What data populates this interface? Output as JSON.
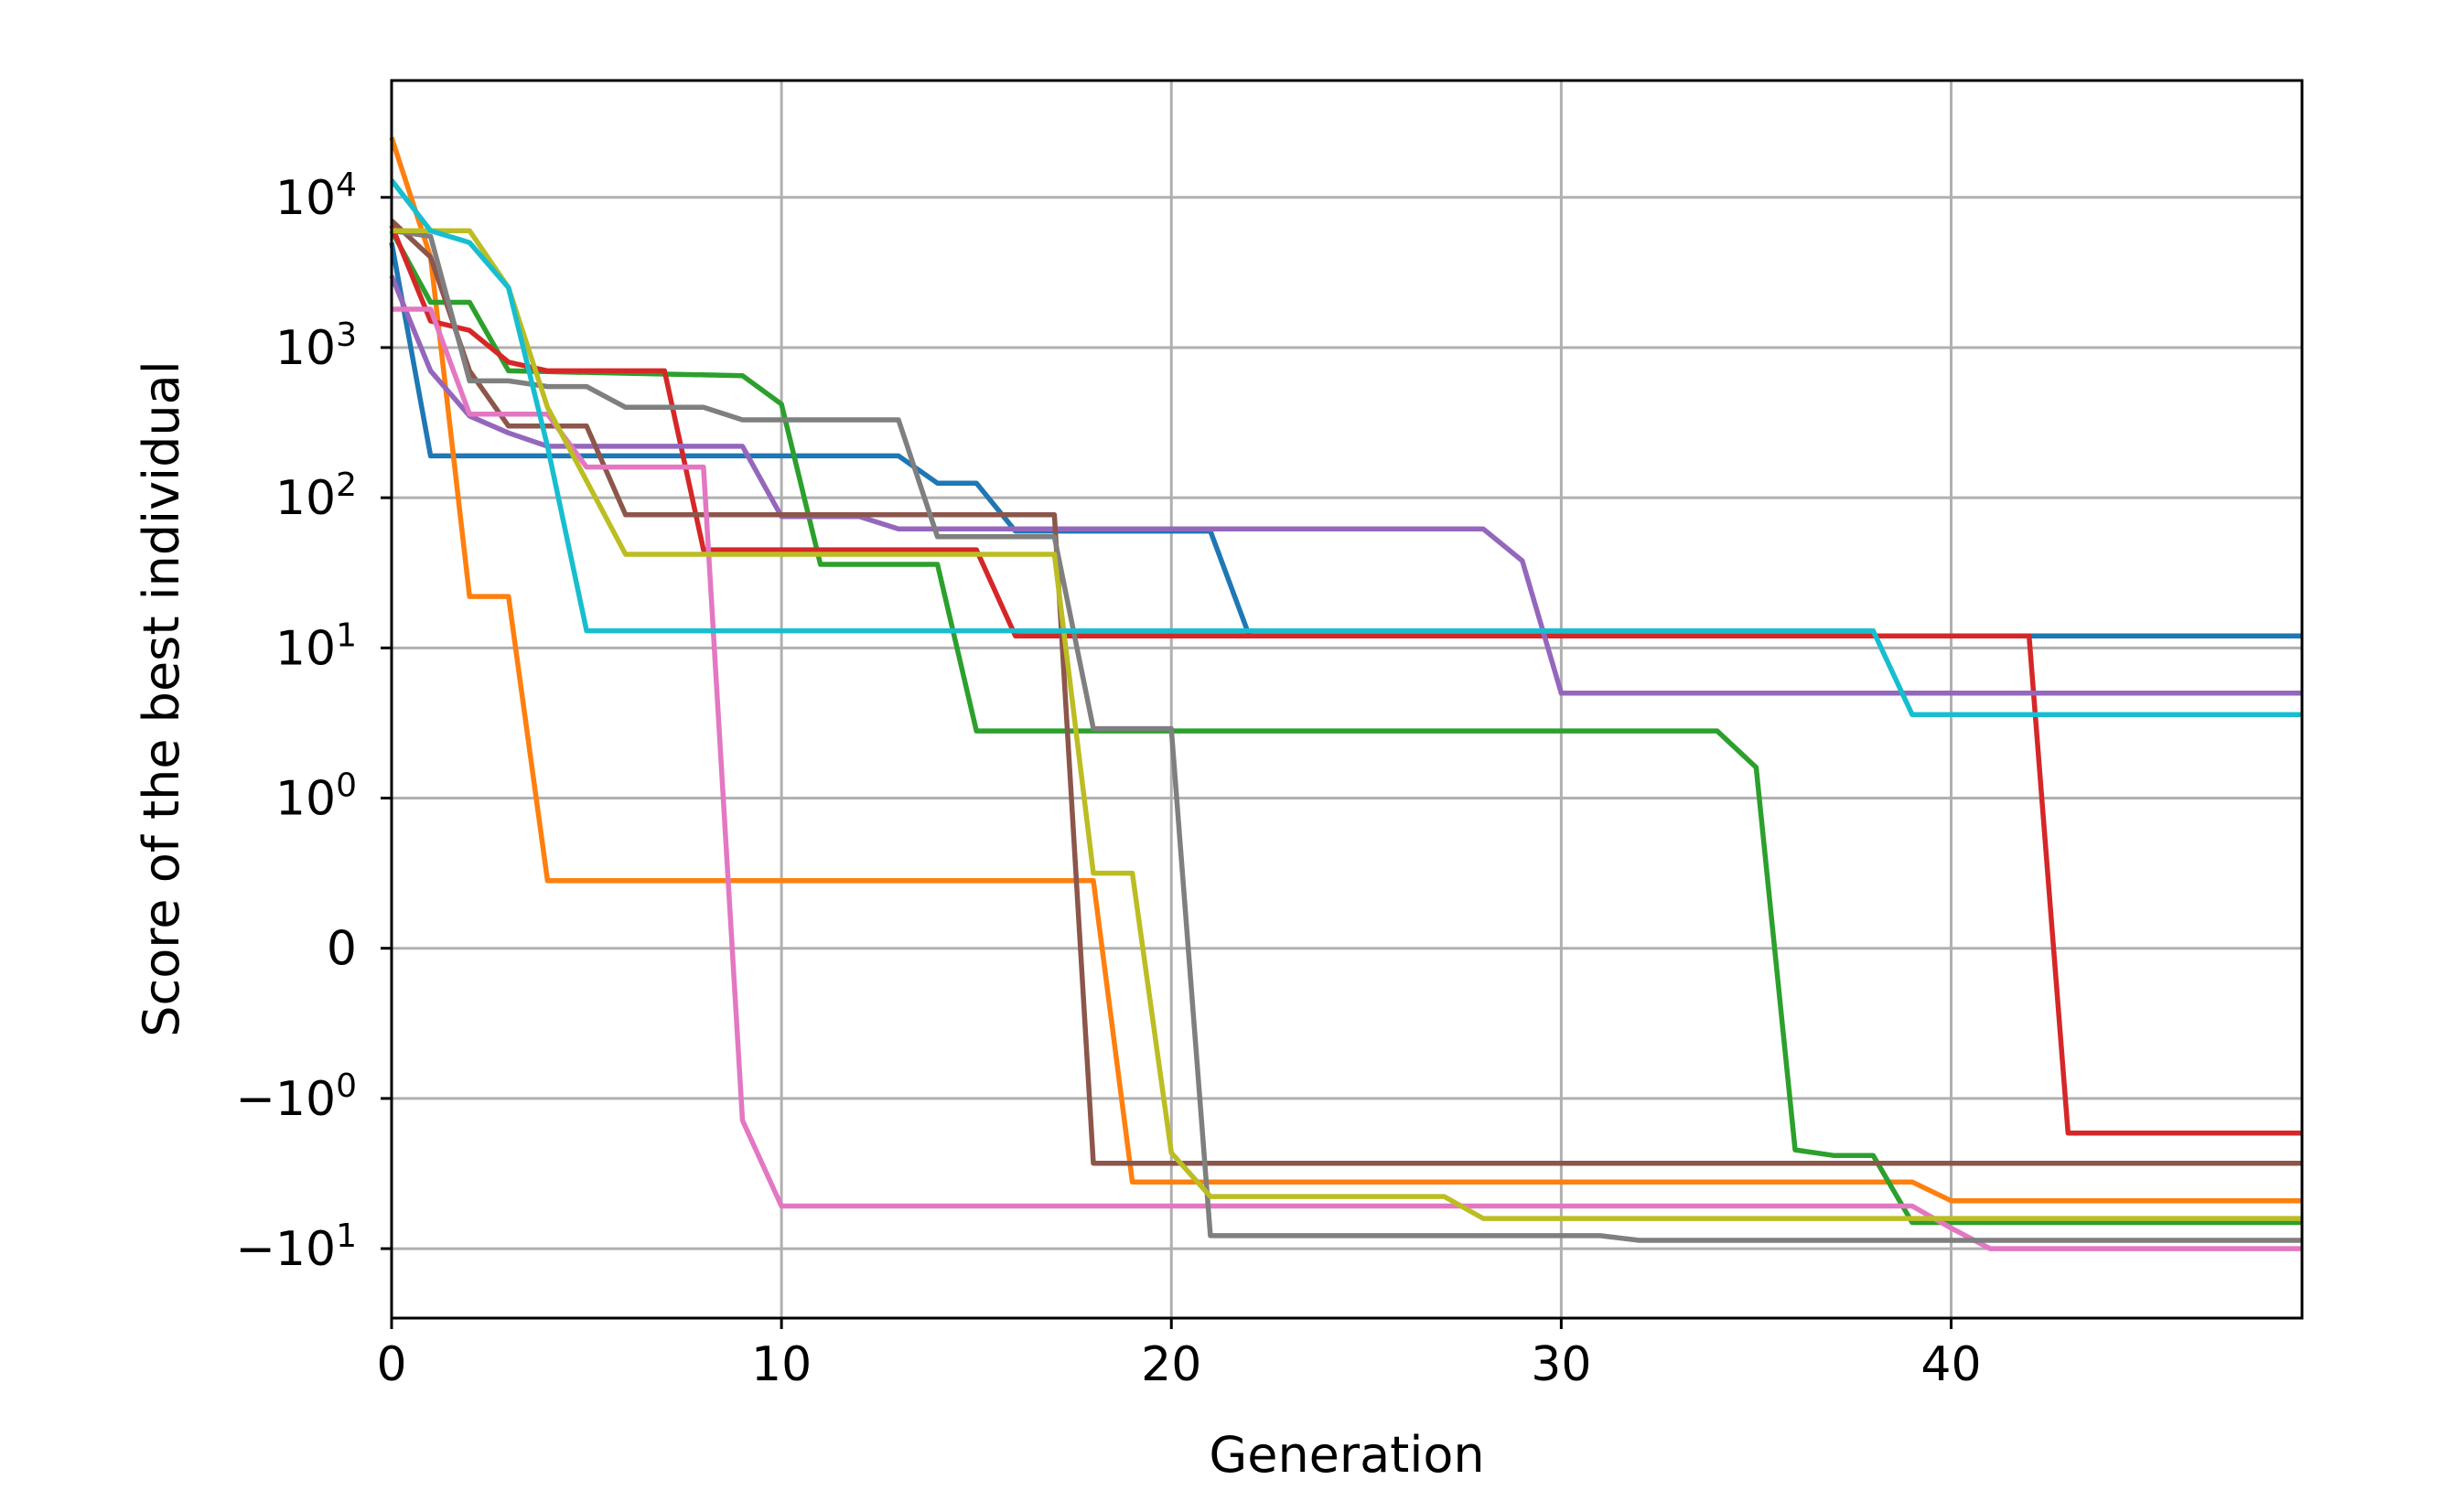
{
  "chart_data": {
    "type": "line",
    "title": "",
    "xlabel": "Generation",
    "ylabel": "Score of the best individual",
    "yscale": "symlog",
    "xlim": [
      0,
      49
    ],
    "x_ticks": [
      {
        "value": 0,
        "label": "0"
      },
      {
        "value": 10,
        "label": "10"
      },
      {
        "value": 20,
        "label": "20"
      },
      {
        "value": 30,
        "label": "30"
      },
      {
        "value": 40,
        "label": "40"
      }
    ],
    "y_ticks": [
      {
        "value": 10000,
        "base": "10",
        "exp": "4"
      },
      {
        "value": 1000,
        "base": "10",
        "exp": "3"
      },
      {
        "value": 100,
        "base": "10",
        "exp": "2"
      },
      {
        "value": 10,
        "base": "10",
        "exp": "1"
      },
      {
        "value": 1,
        "base": "10",
        "exp": "0"
      },
      {
        "value": 0,
        "base": "0",
        "exp": ""
      },
      {
        "value": -1,
        "base": "−10",
        "exp": "0"
      },
      {
        "value": -10,
        "base": "−10",
        "exp": "1"
      }
    ],
    "grid": true,
    "legend": "none",
    "series": [
      {
        "name": "blue",
        "color": "#1f77b4",
        "points": [
          [
            0,
            5000
          ],
          [
            1,
            190
          ],
          [
            13,
            190
          ],
          [
            14,
            125
          ],
          [
            15,
            125
          ],
          [
            16,
            60
          ],
          [
            21,
            60
          ],
          [
            22,
            12
          ],
          [
            49,
            12
          ]
        ]
      },
      {
        "name": "orange",
        "color": "#ff7f0e",
        "points": [
          [
            0,
            25000
          ],
          [
            1,
            4000
          ],
          [
            2,
            22
          ],
          [
            3,
            22
          ],
          [
            4,
            0.45
          ],
          [
            18,
            0.45
          ],
          [
            19,
            -3.6
          ],
          [
            38,
            -3.6
          ],
          [
            39,
            -3.6
          ],
          [
            40,
            -4.8
          ],
          [
            49,
            -4.8
          ]
        ]
      },
      {
        "name": "green",
        "color": "#2ca02c",
        "points": [
          [
            0,
            6000
          ],
          [
            1,
            2000
          ],
          [
            2,
            2000
          ],
          [
            3,
            700
          ],
          [
            9,
            650
          ],
          [
            10,
            420
          ],
          [
            11,
            36
          ],
          [
            14,
            36
          ],
          [
            15,
            2.8
          ],
          [
            34,
            2.8
          ],
          [
            35,
            1.6
          ],
          [
            36,
            -2.2
          ],
          [
            37,
            -2.4
          ],
          [
            38,
            -2.4
          ],
          [
            39,
            -6.7
          ],
          [
            49,
            -6.7
          ]
        ]
      },
      {
        "name": "red",
        "color": "#d62728",
        "points": [
          [
            0,
            6500
          ],
          [
            1,
            1500
          ],
          [
            2,
            1300
          ],
          [
            3,
            800
          ],
          [
            4,
            700
          ],
          [
            7,
            700
          ],
          [
            8,
            45
          ],
          [
            15,
            45
          ],
          [
            16,
            12
          ],
          [
            42,
            12
          ],
          [
            43,
            -1.7
          ],
          [
            49,
            -1.7
          ]
        ]
      },
      {
        "name": "purple",
        "color": "#9467bd",
        "points": [
          [
            0,
            3000
          ],
          [
            1,
            700
          ],
          [
            2,
            350
          ],
          [
            3,
            270
          ],
          [
            4,
            220
          ],
          [
            9,
            220
          ],
          [
            10,
            75
          ],
          [
            12,
            75
          ],
          [
            13,
            62
          ],
          [
            28,
            62
          ],
          [
            29,
            38
          ],
          [
            30,
            5
          ],
          [
            49,
            5
          ]
        ]
      },
      {
        "name": "brown",
        "color": "#8c564b",
        "points": [
          [
            0,
            7000
          ],
          [
            1,
            4000
          ],
          [
            2,
            700
          ],
          [
            3,
            300
          ],
          [
            5,
            300
          ],
          [
            6,
            77
          ],
          [
            17,
            77
          ],
          [
            18,
            -2.7
          ],
          [
            49,
            -2.7
          ]
        ]
      },
      {
        "name": "pink",
        "color": "#e377c2",
        "points": [
          [
            0,
            1800
          ],
          [
            1,
            1800
          ],
          [
            2,
            360
          ],
          [
            4,
            360
          ],
          [
            5,
            160
          ],
          [
            8,
            160
          ],
          [
            9,
            -1.4
          ],
          [
            10,
            -5.2
          ],
          [
            39,
            -5.2
          ],
          [
            40,
            -7.3
          ],
          [
            41,
            -10
          ],
          [
            49,
            -10
          ]
        ]
      },
      {
        "name": "gray",
        "color": "#7f7f7f",
        "points": [
          [
            0,
            6000
          ],
          [
            1,
            5500
          ],
          [
            2,
            600
          ],
          [
            3,
            600
          ],
          [
            4,
            550
          ],
          [
            5,
            550
          ],
          [
            6,
            400
          ],
          [
            8,
            400
          ],
          [
            9,
            330
          ],
          [
            13,
            330
          ],
          [
            14,
            55
          ],
          [
            17,
            55
          ],
          [
            18,
            2.9
          ],
          [
            20,
            2.9
          ],
          [
            21,
            -8.2
          ],
          [
            31,
            -8.2
          ],
          [
            32,
            -8.8
          ],
          [
            49,
            -8.8
          ]
        ]
      },
      {
        "name": "olive",
        "color": "#bcbd22",
        "points": [
          [
            0,
            6000
          ],
          [
            2,
            6000
          ],
          [
            3,
            2500
          ],
          [
            4,
            400
          ],
          [
            6,
            42
          ],
          [
            17,
            42
          ],
          [
            18,
            0.5
          ],
          [
            19,
            0.5
          ],
          [
            20,
            -2.3
          ],
          [
            21,
            -4.5
          ],
          [
            27,
            -4.5
          ],
          [
            28,
            -6.3
          ],
          [
            49,
            -6.3
          ]
        ]
      },
      {
        "name": "cyan",
        "color": "#17becf",
        "points": [
          [
            0,
            13000
          ],
          [
            1,
            6000
          ],
          [
            2,
            5000
          ],
          [
            3,
            2500
          ],
          [
            4,
            220
          ],
          [
            5,
            13
          ],
          [
            38,
            13
          ],
          [
            39,
            3.6
          ],
          [
            49,
            3.6
          ]
        ]
      }
    ]
  }
}
